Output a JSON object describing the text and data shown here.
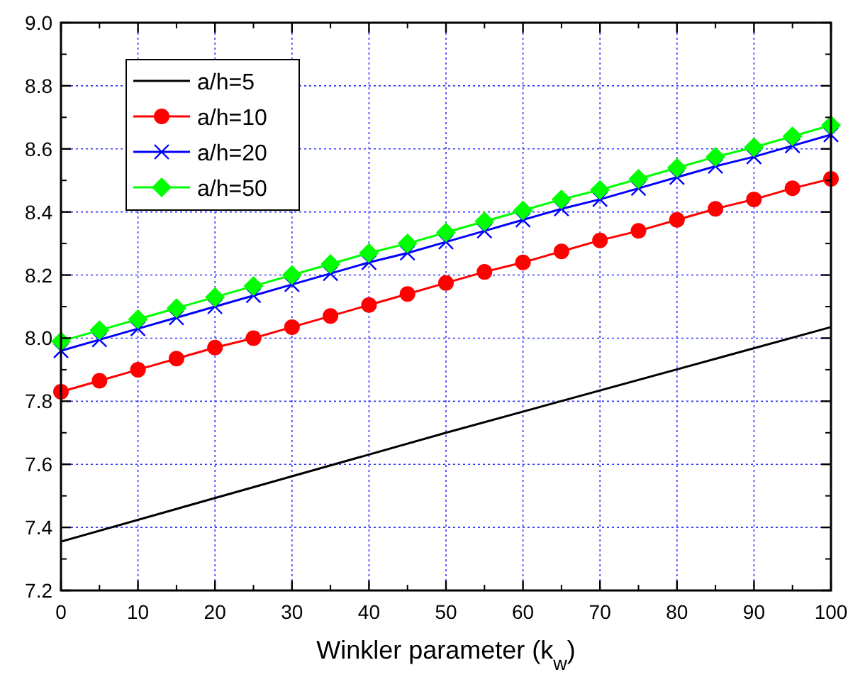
{
  "chart_data": {
    "type": "line",
    "xlabel": "Winkler parameter (k$_{w}$)",
    "xlim": [
      0,
      100
    ],
    "xticks": [
      0,
      10,
      20,
      30,
      40,
      50,
      60,
      70,
      80,
      90,
      100
    ],
    "ylim": [
      7.2,
      9.0
    ],
    "yticks": [
      {
        "value": 7.2,
        "label": "7.2"
      },
      {
        "value": 7.4,
        "label": "7.4"
      },
      {
        "value": 7.6,
        "label": "7.6"
      },
      {
        "value": 7.8,
        "label": "7.8"
      },
      {
        "value": 8.0,
        "label": "8.0"
      },
      {
        "value": 8.2,
        "label": "8.2"
      },
      {
        "value": 8.4,
        "label": "8.4"
      },
      {
        "value": 8.6,
        "label": "8.6"
      },
      {
        "value": 8.8,
        "label": "8.8"
      },
      {
        "value": 9.0,
        "label": "9.0"
      }
    ],
    "grid": true,
    "legend": "top left",
    "series": [
      {
        "name": "a/h=5",
        "color": "#000000",
        "marker": "none",
        "x": [
          0,
          50,
          100
        ],
        "values": [
          7.355,
          7.7,
          8.035
        ]
      },
      {
        "name": "a/h=10",
        "color": "#ff0000",
        "marker": "circle",
        "x": [
          0,
          5,
          10,
          15,
          20,
          25,
          30,
          35,
          40,
          45,
          50,
          55,
          60,
          65,
          70,
          75,
          80,
          85,
          90,
          95,
          100
        ],
        "values": [
          7.83,
          7.865,
          7.9,
          7.935,
          7.97,
          8.0,
          8.035,
          8.07,
          8.105,
          8.14,
          8.175,
          8.21,
          8.24,
          8.275,
          8.31,
          8.34,
          8.375,
          8.41,
          8.44,
          8.475,
          8.505
        ]
      },
      {
        "name": "a/h=20",
        "color": "#0000ff",
        "marker": "cross",
        "x": [
          0,
          5,
          10,
          15,
          20,
          25,
          30,
          35,
          40,
          45,
          50,
          55,
          60,
          65,
          70,
          75,
          80,
          85,
          90,
          95,
          100
        ],
        "values": [
          7.96,
          7.995,
          8.03,
          8.065,
          8.1,
          8.135,
          8.17,
          8.205,
          8.24,
          8.27,
          8.305,
          8.34,
          8.375,
          8.41,
          8.44,
          8.475,
          8.51,
          8.545,
          8.575,
          8.61,
          8.645
        ]
      },
      {
        "name": "a/h=50",
        "color": "#00ff00",
        "marker": "diamond",
        "x": [
          0,
          5,
          10,
          15,
          20,
          25,
          30,
          35,
          40,
          45,
          50,
          55,
          60,
          65,
          70,
          75,
          80,
          85,
          90,
          95,
          100
        ],
        "values": [
          7.99,
          8.025,
          8.06,
          8.095,
          8.13,
          8.165,
          8.2,
          8.235,
          8.27,
          8.3,
          8.335,
          8.37,
          8.405,
          8.44,
          8.47,
          8.505,
          8.54,
          8.575,
          8.605,
          8.64,
          8.675
        ]
      }
    ]
  }
}
